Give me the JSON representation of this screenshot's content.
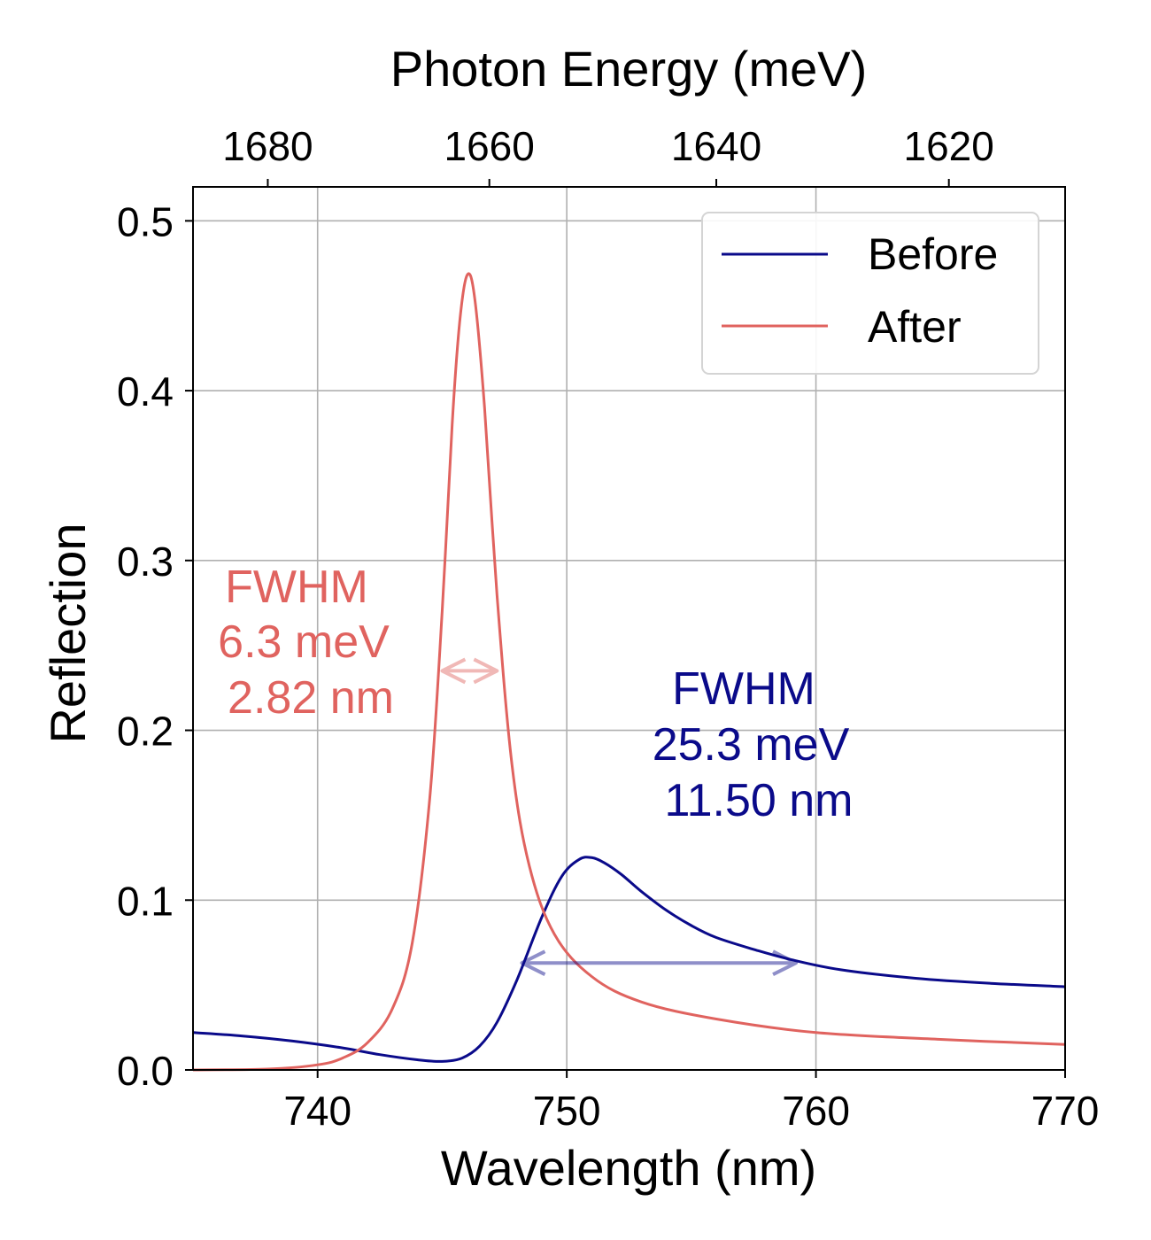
{
  "chart_data": {
    "type": "line",
    "xlabel": "Wavelength (nm)",
    "ylabel": "Reflection",
    "top_xlabel": "Photon Energy (meV)",
    "xlim": [
      735,
      770
    ],
    "ylim": [
      0,
      0.52
    ],
    "x_ticks": [
      740,
      750,
      760,
      770
    ],
    "y_ticks": [
      0.0,
      0.1,
      0.2,
      0.3,
      0.4,
      0.5
    ],
    "y_tick_labels": [
      "0.0",
      "0.1",
      "0.2",
      "0.3",
      "0.4",
      "0.5"
    ],
    "top_x_ticks_meV": [
      1680,
      1660,
      1640,
      1620
    ],
    "grid": true,
    "legend_position": "top-right",
    "series": [
      {
        "name": "Before",
        "color": "#0a0a8a",
        "x": [
          735,
          737,
          739,
          741,
          742.5,
          744,
          745,
          745.8,
          746.5,
          747.2,
          748,
          749,
          749.8,
          750.5,
          751,
          751.5,
          752.2,
          753,
          754,
          755,
          756,
          757.5,
          759,
          761,
          764,
          767,
          770
        ],
        "y": [
          0.022,
          0.02,
          0.017,
          0.013,
          0.009,
          0.006,
          0.005,
          0.007,
          0.014,
          0.028,
          0.053,
          0.09,
          0.114,
          0.124,
          0.125,
          0.122,
          0.115,
          0.105,
          0.094,
          0.085,
          0.078,
          0.071,
          0.065,
          0.059,
          0.054,
          0.051,
          0.049
        ]
      },
      {
        "name": "After",
        "color": "#e0635f",
        "x": [
          735,
          738,
          740,
          741,
          742,
          743,
          743.8,
          744.5,
          745,
          745.4,
          745.7,
          746,
          746.3,
          746.7,
          747.2,
          747.8,
          748.5,
          749.5,
          751,
          753,
          756,
          760,
          765,
          770
        ],
        "y": [
          0.0,
          0.0005,
          0.003,
          0.007,
          0.016,
          0.036,
          0.075,
          0.16,
          0.27,
          0.38,
          0.44,
          0.468,
          0.455,
          0.39,
          0.28,
          0.18,
          0.12,
          0.08,
          0.055,
          0.04,
          0.03,
          0.022,
          0.018,
          0.015
        ]
      }
    ],
    "annotations": [
      {
        "name": "after-fwhm",
        "color": "#e0635f",
        "lines": [
          "FWHM",
          "6.3 meV",
          "2.82 nm"
        ],
        "arrow_x": [
          745,
          747.2
        ],
        "arrow_y": 0.235,
        "anchor": [
          737.5,
          0.285
        ]
      },
      {
        "name": "before-fwhm",
        "color": "#0a0a8a",
        "lines": [
          "FWHM",
          "25.3 meV",
          "11.50 nm"
        ],
        "arrow_x": [
          748.2,
          759.2
        ],
        "arrow_y": 0.063,
        "anchor": [
          756.2,
          0.225
        ]
      }
    ]
  }
}
